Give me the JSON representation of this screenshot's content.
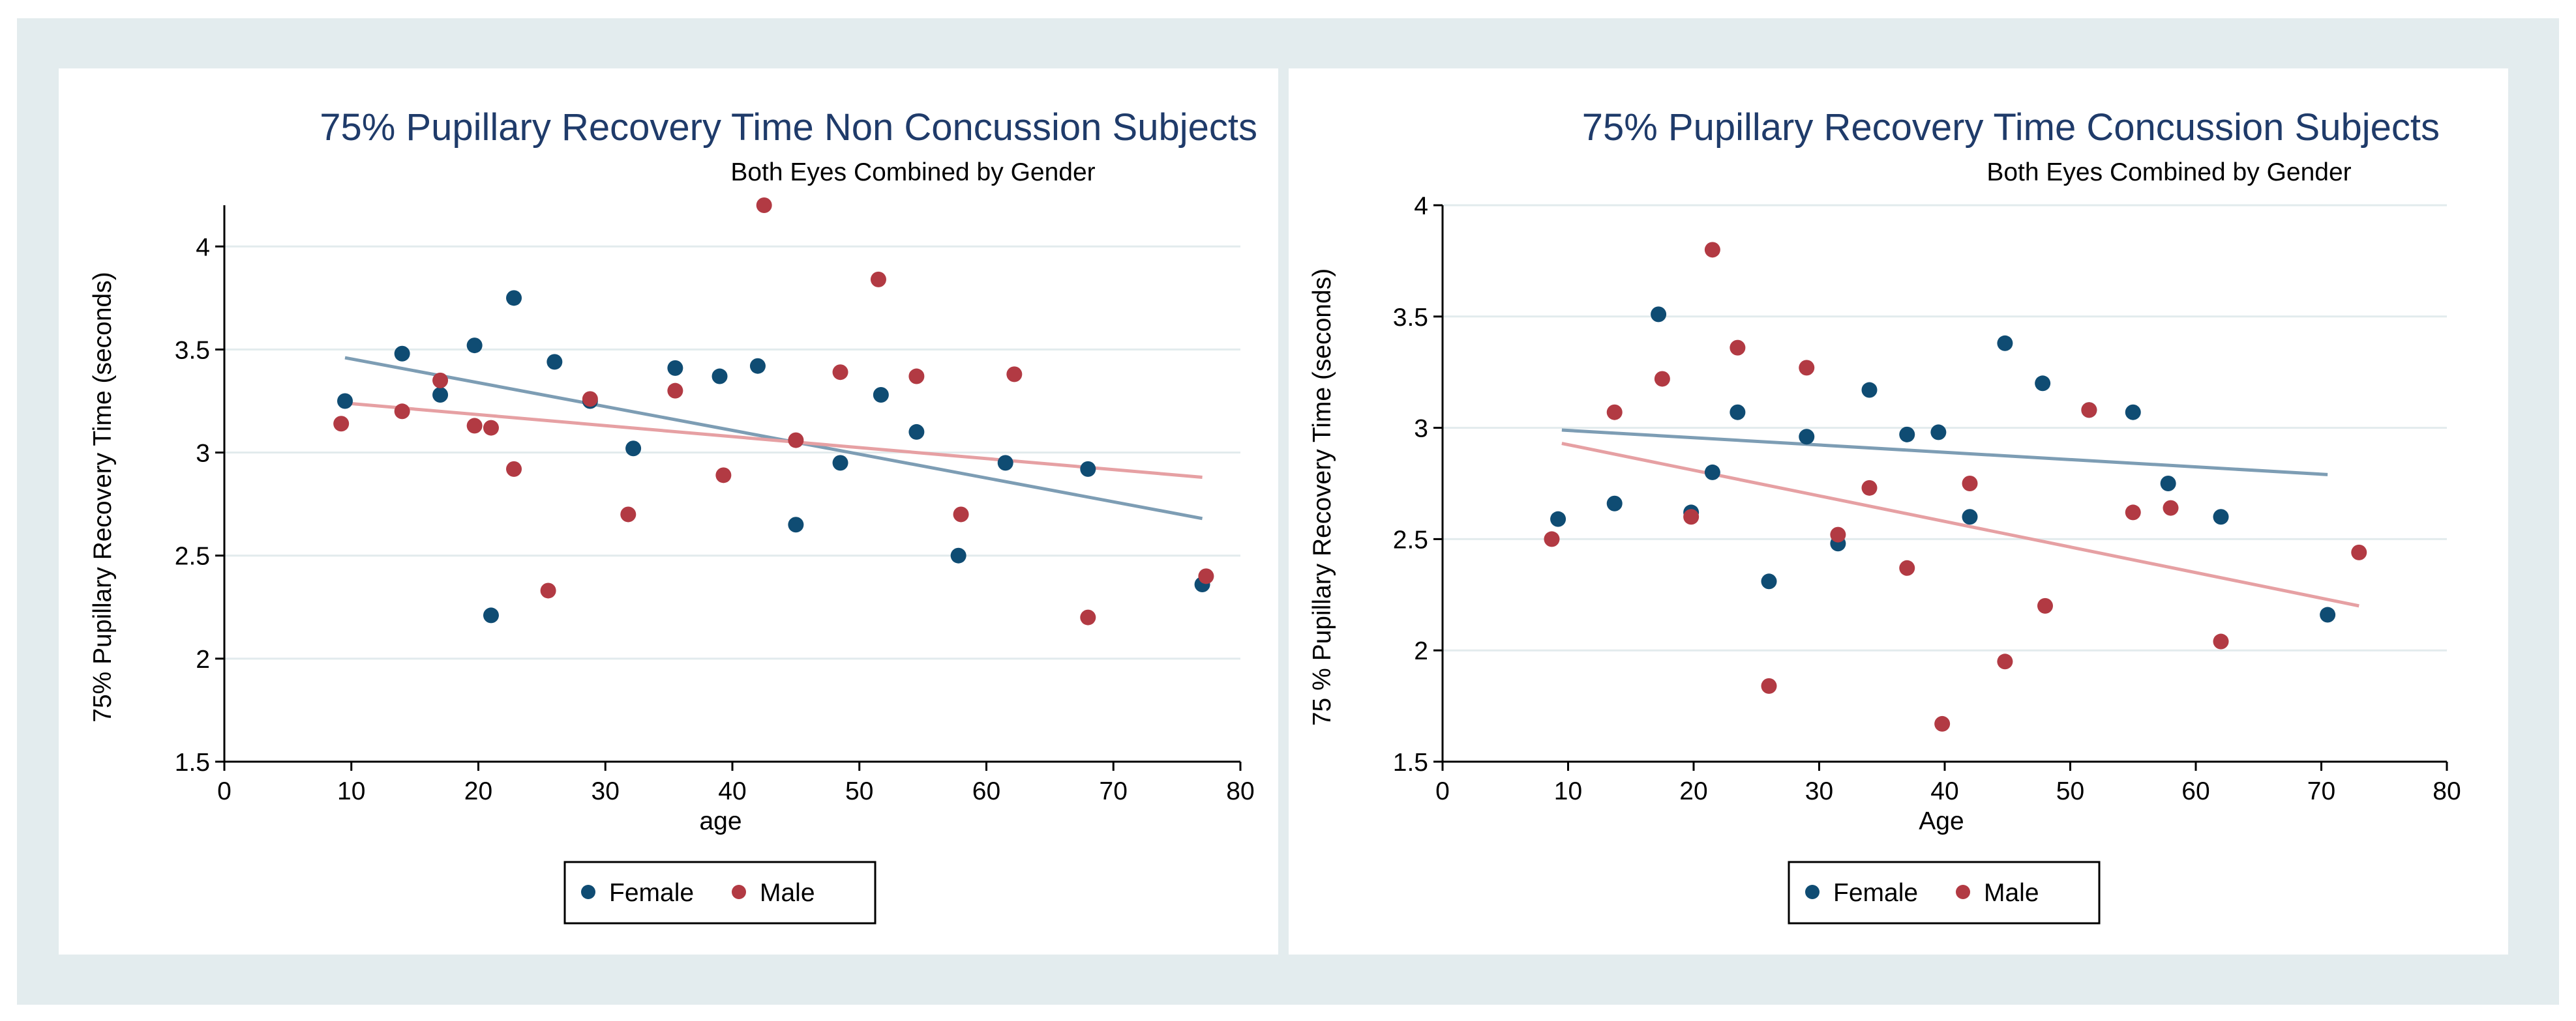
{
  "colors": {
    "female": "#0f4c73",
    "male": "#b23a43",
    "female_fit": "#7d9db4",
    "male_fit": "#e6a0a3",
    "title": "#1f3b6a",
    "grid": "#e2ebed",
    "frame": "#e3ecee"
  },
  "chart_data": [
    {
      "type": "scatter",
      "title": "75% Pupillary Recovery Time Non Concussion Subjects",
      "subtitle": "Both Eyes Combined by Gender",
      "xlabel": "age",
      "ylabel": "75% Pupillary Recovery Time (seconds)",
      "xlim": [
        0,
        80
      ],
      "ylim": [
        1.5,
        4.2
      ],
      "xticks": [
        0,
        10,
        20,
        30,
        40,
        50,
        60,
        70,
        80
      ],
      "yticks": [
        1.5,
        2,
        2.5,
        3,
        3.5,
        4
      ],
      "ytick_labels": [
        "1.5",
        "2",
        "2.5",
        "3",
        "3.5",
        "4"
      ],
      "legend": [
        "Female",
        "Male"
      ],
      "series": [
        {
          "name": "Female",
          "points": [
            [
              9.5,
              3.25
            ],
            [
              14,
              3.48
            ],
            [
              17,
              3.28
            ],
            [
              19.7,
              3.52
            ],
            [
              21,
              2.21
            ],
            [
              22.8,
              3.75
            ],
            [
              26,
              3.44
            ],
            [
              28.8,
              3.25
            ],
            [
              32.2,
              3.02
            ],
            [
              35.5,
              3.41
            ],
            [
              39,
              3.37
            ],
            [
              42,
              3.42
            ],
            [
              45,
              2.65
            ],
            [
              48.5,
              2.95
            ],
            [
              51.7,
              3.28
            ],
            [
              54.5,
              3.1
            ],
            [
              57.8,
              2.5
            ],
            [
              61.5,
              2.95
            ],
            [
              68,
              2.92
            ],
            [
              77,
              2.36
            ]
          ],
          "fit": [
            [
              9.5,
              3.46
            ],
            [
              77,
              2.68
            ]
          ]
        },
        {
          "name": "Male",
          "points": [
            [
              9.2,
              3.14
            ],
            [
              14,
              3.2
            ],
            [
              17,
              3.35
            ],
            [
              19.7,
              3.13
            ],
            [
              21,
              3.12
            ],
            [
              22.8,
              2.92
            ],
            [
              25.5,
              2.33
            ],
            [
              28.8,
              3.26
            ],
            [
              31.8,
              2.7
            ],
            [
              35.5,
              3.3
            ],
            [
              39.3,
              2.89
            ],
            [
              42.5,
              4.2
            ],
            [
              45,
              3.06
            ],
            [
              48.5,
              3.39
            ],
            [
              51.5,
              3.84
            ],
            [
              54.5,
              3.37
            ],
            [
              58,
              2.7
            ],
            [
              62.2,
              3.38
            ],
            [
              68,
              2.2
            ],
            [
              77.3,
              2.4
            ]
          ],
          "fit": [
            [
              9.5,
              3.24
            ],
            [
              77,
              2.88
            ]
          ]
        }
      ]
    },
    {
      "type": "scatter",
      "title": "75% Pupillary Recovery Time Concussion Subjects",
      "subtitle": "Both Eyes Combined by Gender",
      "xlabel": "Age",
      "ylabel": "75 % Pupillary Recovery Time (seconds)",
      "xlim": [
        0,
        80
      ],
      "ylim": [
        1.5,
        4
      ],
      "xticks": [
        0,
        10,
        20,
        30,
        40,
        50,
        60,
        70,
        80
      ],
      "yticks": [
        1.5,
        2,
        2.5,
        3,
        3.5,
        4
      ],
      "ytick_labels": [
        "1.5",
        "2",
        "2.5",
        "3",
        "3.5",
        "4"
      ],
      "legend": [
        "Female",
        "Male"
      ],
      "series": [
        {
          "name": "Female",
          "points": [
            [
              9.2,
              2.59
            ],
            [
              13.7,
              2.66
            ],
            [
              17.2,
              3.51
            ],
            [
              19.8,
              2.62
            ],
            [
              21.5,
              2.8
            ],
            [
              23.5,
              3.07
            ],
            [
              26,
              2.31
            ],
            [
              29,
              2.96
            ],
            [
              31.5,
              2.48
            ],
            [
              34,
              3.17
            ],
            [
              37,
              2.97
            ],
            [
              39.5,
              2.98
            ],
            [
              42,
              2.6
            ],
            [
              44.8,
              3.38
            ],
            [
              47.8,
              3.2
            ],
            [
              51.5,
              3.08
            ],
            [
              55,
              3.07
            ],
            [
              57.8,
              2.75
            ],
            [
              62,
              2.6
            ],
            [
              70.5,
              2.16
            ]
          ],
          "fit": [
            [
              9.5,
              2.99
            ],
            [
              70.5,
              2.79
            ]
          ]
        },
        {
          "name": "Male",
          "points": [
            [
              8.7,
              2.5
            ],
            [
              13.7,
              3.07
            ],
            [
              17.5,
              3.22
            ],
            [
              19.8,
              2.6
            ],
            [
              21.5,
              3.8
            ],
            [
              23.5,
              3.36
            ],
            [
              26,
              1.84
            ],
            [
              29,
              3.27
            ],
            [
              31.5,
              2.52
            ],
            [
              34,
              2.73
            ],
            [
              37,
              2.37
            ],
            [
              39.8,
              1.67
            ],
            [
              42,
              2.75
            ],
            [
              44.8,
              1.95
            ],
            [
              48,
              2.2
            ],
            [
              51.5,
              3.08
            ],
            [
              55,
              2.62
            ],
            [
              58,
              2.64
            ],
            [
              62,
              2.04
            ],
            [
              73,
              2.44
            ]
          ],
          "fit": [
            [
              9.5,
              2.93
            ],
            [
              73,
              2.2
            ]
          ]
        }
      ]
    }
  ]
}
